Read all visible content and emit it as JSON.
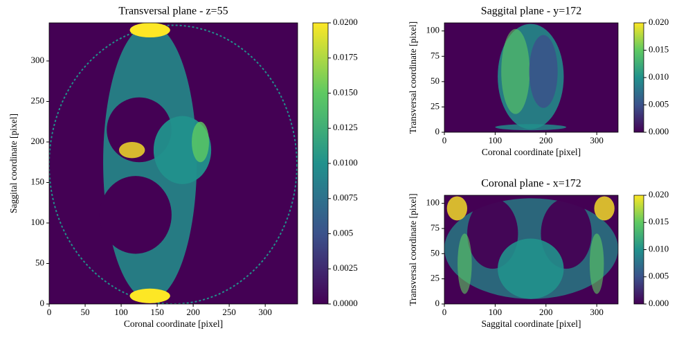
{
  "chart_data": [
    {
      "type": "image",
      "title": "Transversal plane - z=55",
      "xlabel": "Coronal coordinate [pixel]",
      "ylabel": "Saggital coordinate [pixel]",
      "xlim": [
        0,
        345
      ],
      "ylim": [
        0,
        347
      ],
      "xticks": [
        0,
        50,
        100,
        150,
        200,
        250,
        300
      ],
      "yticks": [
        0,
        50,
        100,
        150,
        200,
        250,
        300
      ],
      "colormap": [
        "#440154",
        "#3b528b",
        "#21918c",
        "#5ec962",
        "#fde725"
      ],
      "clim": [
        0,
        0.02
      ],
      "cticks": [
        {
          "value": 0,
          "label": "0.0000"
        },
        0.0025,
        0.005,
        0.0075,
        {
          "value": 0.01,
          "label": "0.0100"
        },
        0.0125,
        {
          "value": 0.015,
          "label": "0.0150"
        },
        0.0175,
        {
          "value": 0.02,
          "label": "0.0200"
        }
      ]
    },
    {
      "type": "image",
      "title": "Saggital plane - y=172",
      "xlabel": "Coronal coordinate [pixel]",
      "ylabel": "Transversal coordinate [pixel]",
      "xlim": [
        0,
        342
      ],
      "ylim": [
        0,
        108
      ],
      "xticks": [
        0,
        100,
        200,
        300
      ],
      "yticks": [
        0,
        25,
        50,
        75,
        100
      ],
      "colormap": [
        "#440154",
        "#3b528b",
        "#21918c",
        "#5ec962",
        "#fde725"
      ],
      "clim": [
        0,
        0.02
      ],
      "cticks": [
        {
          "value": 0,
          "label": "0.000"
        },
        0.005,
        {
          "value": 0.01,
          "label": "0.010"
        },
        0.015,
        {
          "value": 0.02,
          "label": "0.020"
        }
      ]
    },
    {
      "type": "image",
      "title": "Coronal plane - x=172",
      "xlabel": "Saggital coordinate [pixel]",
      "ylabel": "Transversal coordinate [pixel]",
      "xlim": [
        0,
        342
      ],
      "ylim": [
        0,
        108
      ],
      "xticks": [
        0,
        100,
        200,
        300
      ],
      "yticks": [
        0,
        25,
        50,
        75,
        100
      ],
      "colormap": [
        "#440154",
        "#3b528b",
        "#21918c",
        "#5ec962",
        "#fde725"
      ],
      "clim": [
        0,
        0.02
      ],
      "cticks": [
        {
          "value": 0,
          "label": "0.000"
        },
        0.005,
        {
          "value": 0.01,
          "label": "0.010"
        },
        0.015,
        {
          "value": 0.02,
          "label": "0.020"
        }
      ]
    }
  ]
}
